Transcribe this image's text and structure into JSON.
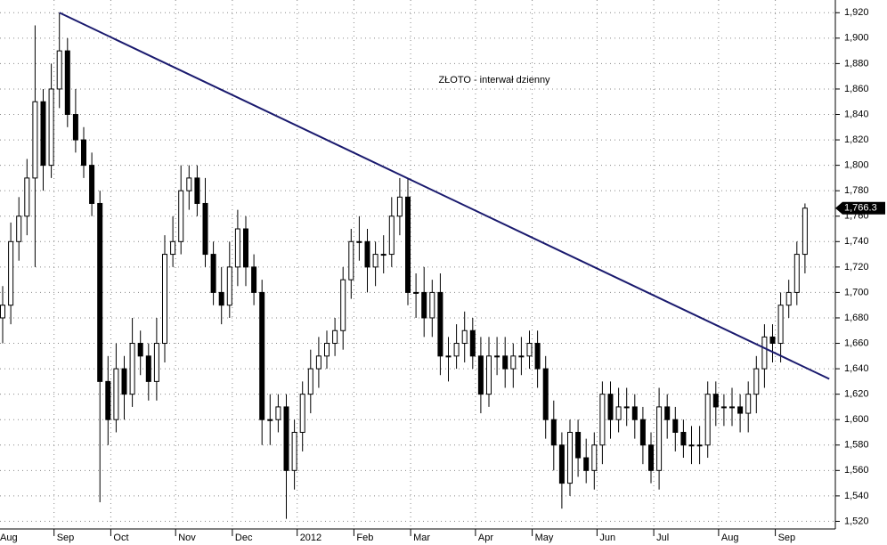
{
  "chart_data": {
    "type": "candlestick",
    "title": "ZŁOTO - interwał dzienny",
    "categories": [
      "Aug",
      null,
      null,
      null,
      null,
      null,
      null,
      "Sep",
      null,
      null,
      null,
      null,
      null,
      null,
      "Oct",
      null,
      null,
      null,
      null,
      null,
      null,
      null,
      "Nov",
      null,
      null,
      null,
      null,
      null,
      null,
      "Dec",
      null,
      null,
      null,
      null,
      null,
      null,
      null,
      "2012",
      null,
      null,
      null,
      null,
      null,
      null,
      "Feb",
      null,
      null,
      null,
      null,
      null,
      null,
      "Mar",
      null,
      null,
      null,
      null,
      null,
      null,
      null,
      "Apr",
      null,
      null,
      null,
      null,
      null,
      null,
      "May",
      null,
      null,
      null,
      null,
      null,
      null,
      null,
      "Jun",
      null,
      null,
      null,
      null,
      null,
      null,
      "Jul",
      null,
      null,
      null,
      null,
      null,
      null,
      null,
      "Aug",
      null,
      null,
      null,
      null,
      null,
      null,
      "Sep",
      null,
      null,
      null
    ],
    "open": [
      1680,
      1690,
      1740,
      1760,
      1790,
      1850,
      1800,
      1860,
      1890,
      1840,
      1820,
      1800,
      1770,
      1630,
      1600,
      1640,
      1620,
      1660,
      1650,
      1630,
      1660,
      1730,
      1740,
      1780,
      1790,
      1770,
      1730,
      1700,
      1690,
      1720,
      1750,
      1720,
      1700,
      1600,
      1600,
      1610,
      1560,
      1590,
      1620,
      1640,
      1650,
      1660,
      1670,
      1710,
      1740,
      1740,
      1720,
      1730,
      1730,
      1760,
      1775,
      1700,
      1700,
      1680,
      1700,
      1650,
      1650,
      1660,
      1670,
      1650,
      1620,
      1650,
      1650,
      1640,
      1650,
      1650,
      1660,
      1640,
      1600,
      1580,
      1550,
      1590,
      1570,
      1560,
      1580,
      1620,
      1600,
      1610,
      1610,
      1600,
      1580,
      1560,
      1610,
      1600,
      1590,
      1580,
      1580,
      1580,
      1620,
      1610,
      1610,
      1610,
      1605,
      1620,
      1640,
      1665,
      1660,
      1690,
      1700,
      1730
    ],
    "high": [
      1705,
      1755,
      1775,
      1805,
      1910,
      1860,
      1880,
      1920,
      1900,
      1860,
      1830,
      1810,
      1780,
      1650,
      1660,
      1650,
      1680,
      1670,
      1660,
      1680,
      1745,
      1760,
      1800,
      1800,
      1800,
      1790,
      1740,
      1720,
      1740,
      1765,
      1760,
      1730,
      1710,
      1620,
      1620,
      1620,
      1600,
      1630,
      1655,
      1665,
      1670,
      1680,
      1720,
      1750,
      1760,
      1750,
      1740,
      1745,
      1775,
      1790,
      1790,
      1715,
      1720,
      1710,
      1715,
      1665,
      1675,
      1685,
      1680,
      1665,
      1665,
      1665,
      1665,
      1660,
      1665,
      1670,
      1670,
      1650,
      1615,
      1590,
      1600,
      1600,
      1585,
      1590,
      1630,
      1630,
      1625,
      1625,
      1620,
      1610,
      1590,
      1625,
      1620,
      1610,
      1600,
      1595,
      1595,
      1630,
      1630,
      1620,
      1625,
      1620,
      1630,
      1650,
      1675,
      1675,
      1700,
      1710,
      1740,
      1770
    ],
    "low": [
      1660,
      1675,
      1725,
      1745,
      1720,
      1780,
      1790,
      1845,
      1830,
      1810,
      1790,
      1760,
      1535,
      1580,
      1590,
      1600,
      1610,
      1635,
      1615,
      1615,
      1645,
      1720,
      1730,
      1765,
      1760,
      1720,
      1690,
      1675,
      1680,
      1705,
      1705,
      1690,
      1580,
      1580,
      1590,
      1522,
      1545,
      1575,
      1605,
      1625,
      1640,
      1650,
      1655,
      1695,
      1725,
      1700,
      1705,
      1715,
      1720,
      1745,
      1690,
      1680,
      1665,
      1665,
      1635,
      1630,
      1640,
      1645,
      1640,
      1605,
      1610,
      1635,
      1625,
      1625,
      1635,
      1640,
      1625,
      1585,
      1560,
      1530,
      1540,
      1555,
      1550,
      1545,
      1565,
      1585,
      1590,
      1595,
      1585,
      1565,
      1550,
      1545,
      1585,
      1575,
      1570,
      1565,
      1565,
      1570,
      1595,
      1595,
      1595,
      1590,
      1590,
      1605,
      1625,
      1645,
      1645,
      1680,
      1690,
      1715
    ],
    "close": [
      1690,
      1740,
      1760,
      1790,
      1850,
      1800,
      1860,
      1890,
      1840,
      1820,
      1800,
      1770,
      1630,
      1600,
      1640,
      1620,
      1660,
      1650,
      1630,
      1660,
      1730,
      1740,
      1780,
      1790,
      1770,
      1730,
      1700,
      1690,
      1720,
      1750,
      1720,
      1700,
      1600,
      1600,
      1610,
      1560,
      1590,
      1620,
      1640,
      1650,
      1660,
      1670,
      1710,
      1740,
      1740,
      1720,
      1730,
      1730,
      1760,
      1775,
      1700,
      1700,
      1680,
      1700,
      1650,
      1650,
      1660,
      1670,
      1650,
      1620,
      1650,
      1650,
      1640,
      1650,
      1650,
      1660,
      1640,
      1600,
      1580,
      1550,
      1590,
      1570,
      1560,
      1580,
      1620,
      1600,
      1610,
      1610,
      1600,
      1580,
      1560,
      1610,
      1600,
      1590,
      1580,
      1580,
      1580,
      1620,
      1610,
      1610,
      1610,
      1605,
      1620,
      1640,
      1665,
      1660,
      1690,
      1700,
      1730,
      1766.3
    ],
    "last_label": "1,766.3",
    "trendline": {
      "from_index": 7,
      "from_value": 1920,
      "to_index": 102,
      "to_value": 1632,
      "color": "#1a1a6e"
    },
    "ylim": [
      1514,
      1930
    ],
    "yticks": [
      {
        "value": 1520,
        "label": "1,520"
      },
      {
        "value": 1540,
        "label": "1,540"
      },
      {
        "value": 1560,
        "label": "1,560"
      },
      {
        "value": 1580,
        "label": "1,580"
      },
      {
        "value": 1600,
        "label": "1,600"
      },
      {
        "value": 1620,
        "label": "1,620"
      },
      {
        "value": 1640,
        "label": "1,640"
      },
      {
        "value": 1660,
        "label": "1,660"
      },
      {
        "value": 1680,
        "label": "1,680"
      },
      {
        "value": 1700,
        "label": "1,700"
      },
      {
        "value": 1720,
        "label": "1,720"
      },
      {
        "value": 1740,
        "label": "1,740"
      },
      {
        "value": 1760,
        "label": "1,760"
      },
      {
        "value": 1780,
        "label": "1,780"
      },
      {
        "value": 1800,
        "label": "1,800"
      },
      {
        "value": 1820,
        "label": "1,820"
      },
      {
        "value": 1840,
        "label": "1,840"
      },
      {
        "value": 1860,
        "label": "1,860"
      },
      {
        "value": 1880,
        "label": "1,880"
      },
      {
        "value": 1900,
        "label": "1,900"
      },
      {
        "value": 1920,
        "label": "1,920"
      }
    ],
    "grid": true
  }
}
